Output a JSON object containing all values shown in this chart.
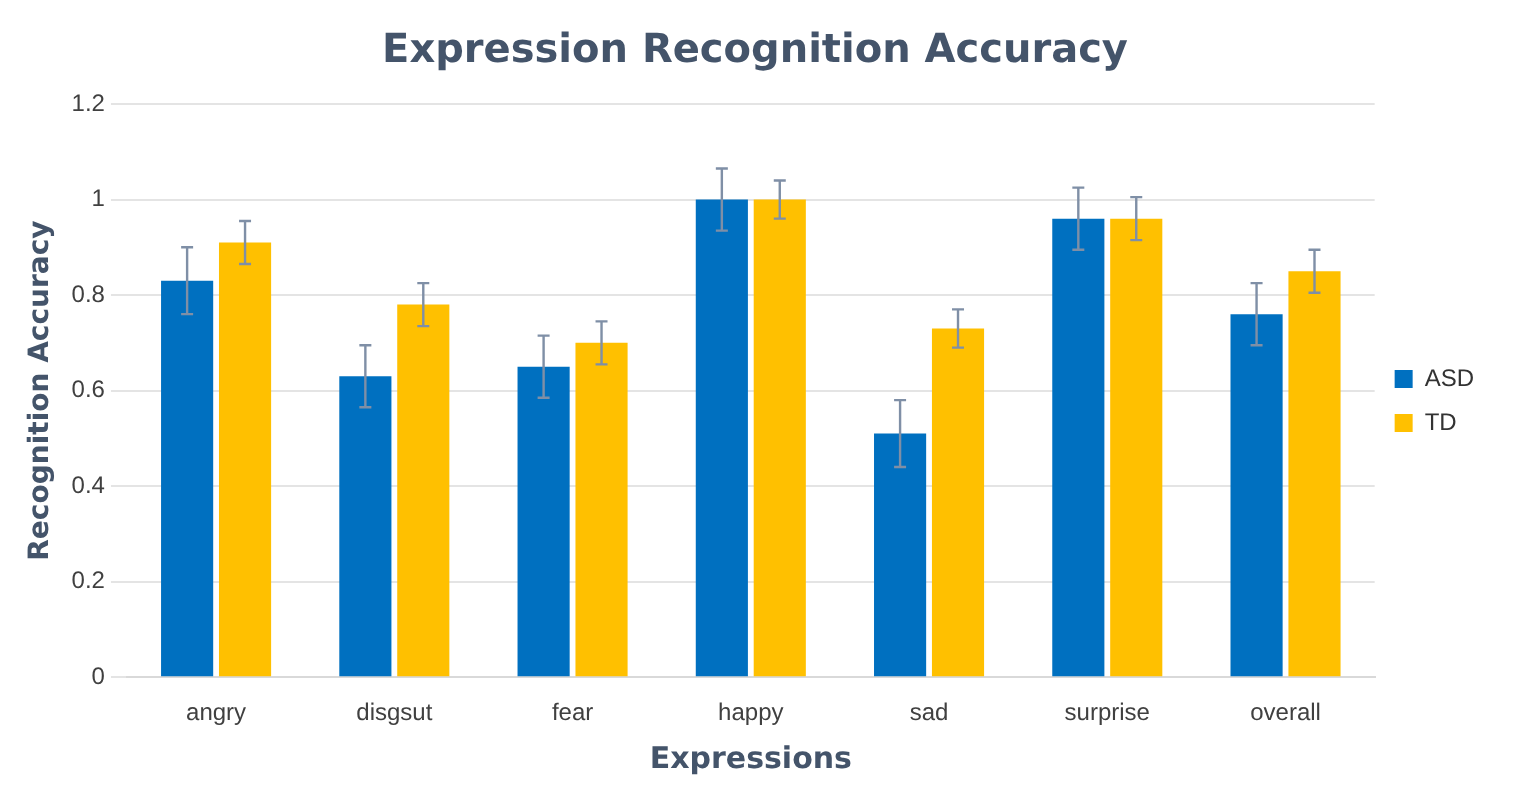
{
  "chart_data": {
    "type": "bar",
    "title": "Expression Recognition Accuracy",
    "xlabel": "Expressions",
    "ylabel": "Recognition Accuracy",
    "categories": [
      "angry",
      "disgsut",
      "fear",
      "happy",
      "sad",
      "surprise",
      "overall"
    ],
    "series": [
      {
        "name": "ASD",
        "color": "#0070c0",
        "values": [
          0.83,
          0.63,
          0.65,
          1.0,
          0.51,
          0.96,
          0.76
        ],
        "errors": [
          0.07,
          0.065,
          0.065,
          0.065,
          0.07,
          0.065,
          0.065
        ]
      },
      {
        "name": "TD",
        "color": "#ffc000",
        "values": [
          0.91,
          0.78,
          0.7,
          1.0,
          0.73,
          0.96,
          0.85
        ],
        "errors": [
          0.045,
          0.045,
          0.045,
          0.04,
          0.04,
          0.045,
          0.045
        ]
      }
    ],
    "ylim": [
      0,
      1.2
    ],
    "yticks": [
      0,
      0.2,
      0.4,
      0.6,
      0.8,
      1,
      1.2
    ],
    "grid": "y",
    "legend": "right"
  }
}
